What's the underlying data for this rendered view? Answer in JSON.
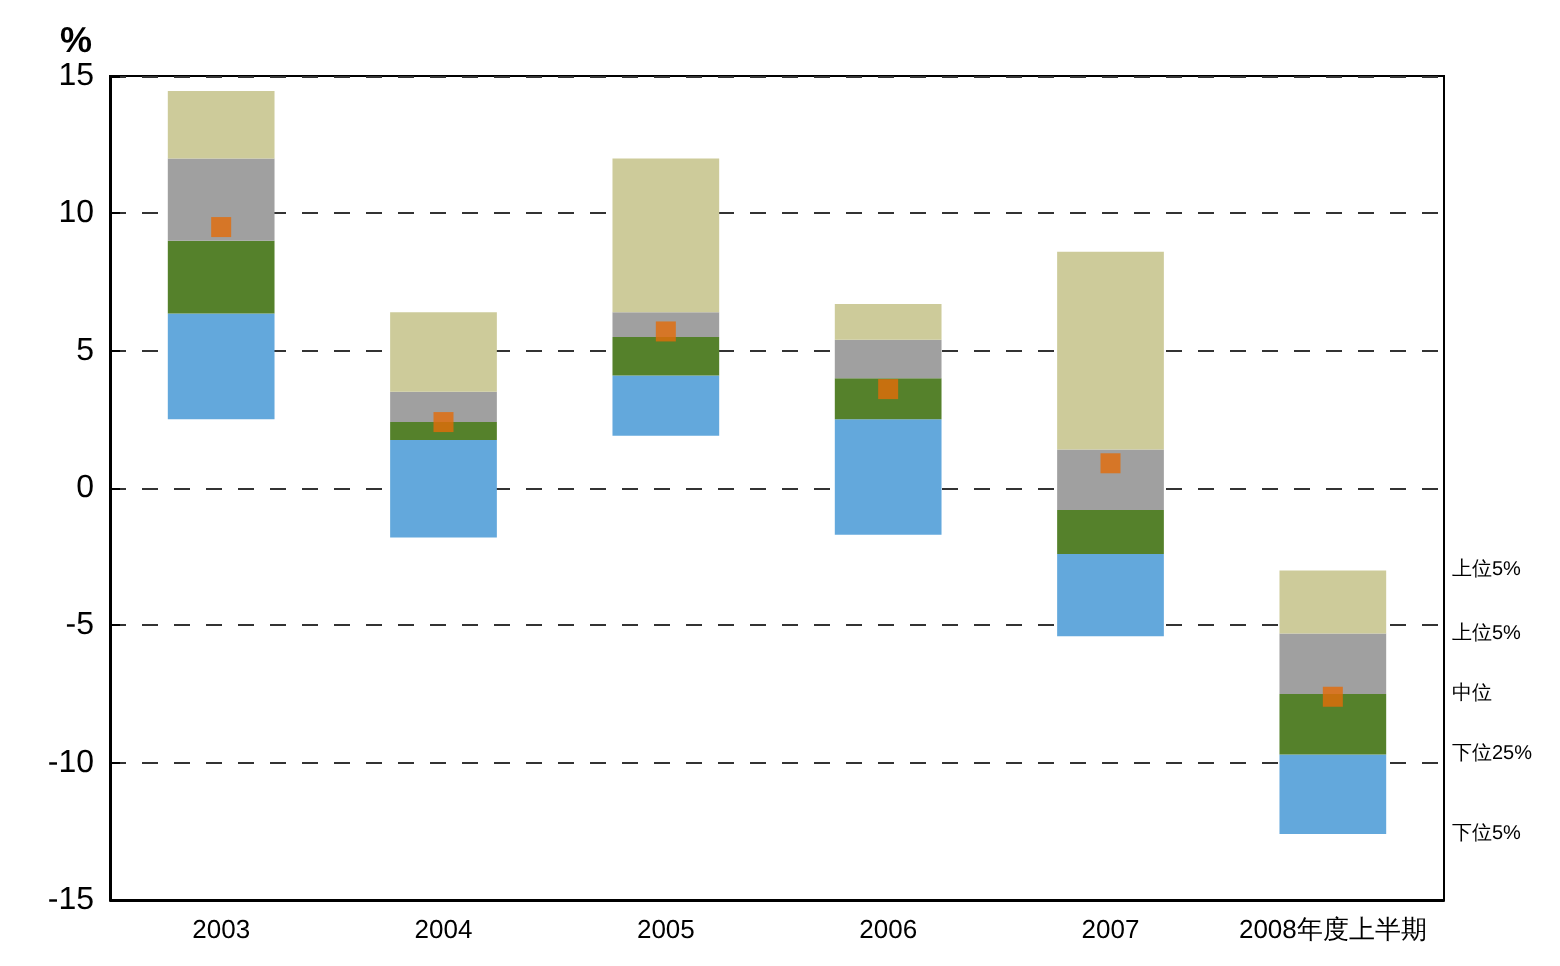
{
  "chart_data": {
    "type": "bar",
    "ylabel": "%",
    "categories": [
      "2003",
      "2004",
      "2005",
      "2006",
      "2007",
      "2008年度上半期"
    ],
    "series": [
      {
        "color": "#63a8dc",
        "base": [
          2.5,
          -1.8,
          1.9,
          -1.7,
          -5.4,
          -12.6
        ],
        "values": [
          3.85,
          3.55,
          2.2,
          4.2,
          3.0,
          2.9
        ]
      },
      {
        "color": "#55812b",
        "base": [
          6.35,
          1.75,
          4.1,
          2.5,
          -2.4,
          -9.7
        ],
        "values": [
          2.65,
          0.65,
          1.4,
          1.5,
          1.6,
          2.2
        ]
      },
      {
        "color": "#a0a0a0",
        "base": [
          9.0,
          2.4,
          5.5,
          4.0,
          -0.8,
          -7.5
        ],
        "values": [
          3.0,
          1.1,
          0.9,
          1.4,
          2.2,
          2.2
        ]
      },
      {
        "color": "#cdcb9a",
        "base": [
          12.0,
          3.5,
          6.4,
          5.4,
          1.4,
          -5.3
        ],
        "values": [
          2.45,
          2.9,
          5.6,
          1.3,
          7.2,
          2.3
        ]
      },
      {
        "type": "scatter",
        "color": "#e36c09",
        "marker": "square",
        "values": [
          9.5,
          2.4,
          5.7,
          3.6,
          0.9,
          -7.6
        ]
      }
    ],
    "ylim": [
      -15,
      15
    ],
    "yticks": [
      -15,
      -10,
      -5,
      0,
      5,
      10,
      15
    ],
    "grid": "y",
    "annotations": [
      "上位5%",
      "上位5%",
      "中位",
      "下位25%",
      "下位5%"
    ]
  }
}
